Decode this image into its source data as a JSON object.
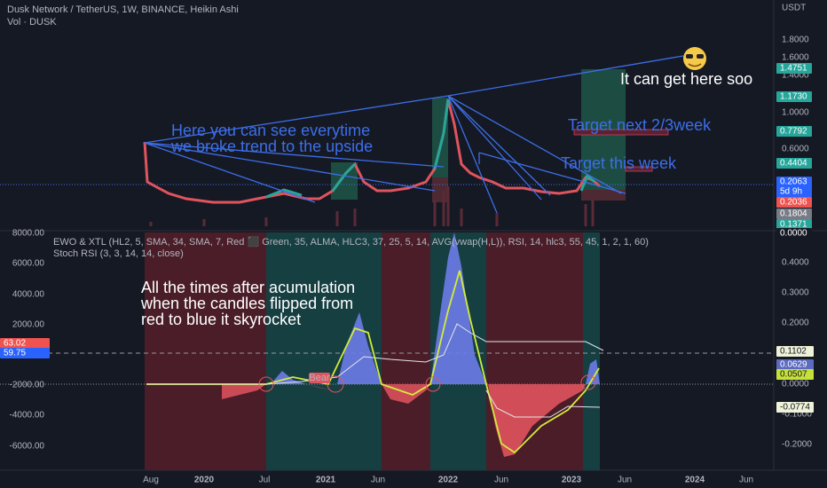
{
  "header": {
    "title": "Dusk Network / TetherUS, 1W, BINANCE, Heikin Ashi",
    "volume": "Vol · DUSK"
  },
  "price_axis": {
    "unit": "USDT",
    "labels": [
      "1.8000",
      "1.6000",
      "1.4000",
      "1.0000",
      "0.6000"
    ],
    "badges": [
      "1.4751",
      "1.1730",
      "0.7792",
      "0.4404",
      "0.2063",
      "5d 9h",
      "0.2036",
      "0.1804",
      "0.1371",
      "0.0000"
    ]
  },
  "annotations": {
    "top_right": "It can get here soo",
    "trend_1": "Here you can see everytime",
    "trend_2": "we broke trend to the upside",
    "target_next": "Target next 2/3week",
    "target_week": "Target this week",
    "note_1": "All the times after acumulation",
    "note_2": " when the candles flipped from",
    "note_3": "red to blue it skyrocket",
    "bear": "Bear"
  },
  "indicator": {
    "ewo": "EWO & XTL (HL2, 5, SMA, 34, SMA, 7, Red ⬛ Green, 35, ALMA, HLC3, 37, 25, 5, 14, AVG(vwap(H,L)), RSI, 14, hlc3, 55, 45, 1, 2, 1, 60)",
    "stoch": "Stoch RSI (3, 3, 14, 14, close)",
    "left_labels": [
      "8000.00",
      "6000.00",
      "4000.00",
      "2000.00",
      "-2000.00",
      "-4000.00",
      "-6000.00"
    ],
    "left_badges": [
      "63.02",
      "59.75"
    ],
    "right_labels": [
      "0.4000",
      "0.3000",
      "0.2000",
      "0.0000",
      "-0.1000",
      "-0.2000"
    ],
    "right_badges": [
      "0.1102",
      "0.0629",
      "0.0507",
      "-0.0774"
    ]
  },
  "time_axis": [
    "Aug",
    "2020",
    "Jul",
    "2021",
    "Jun",
    "2022",
    "Jun",
    "2023",
    "Jun",
    "2024",
    "Jun"
  ]
}
